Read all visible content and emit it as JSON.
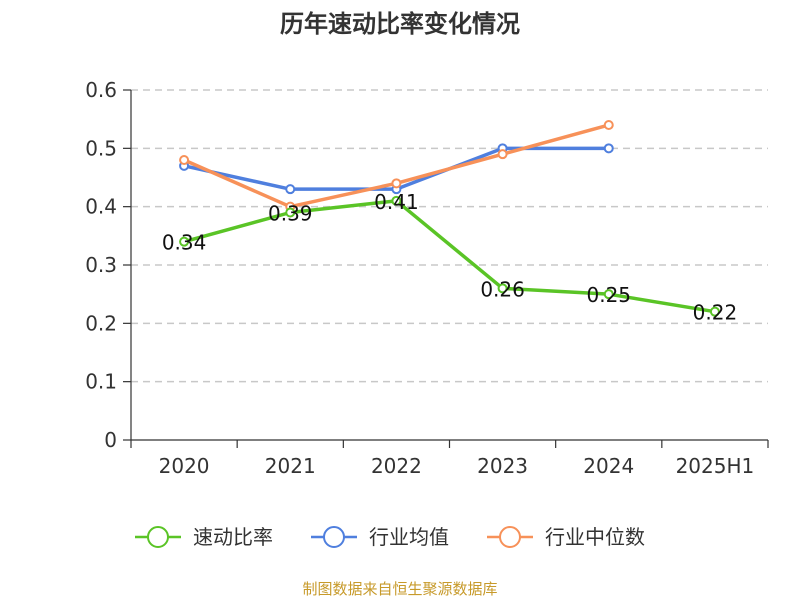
{
  "chart_data": {
    "type": "line",
    "title": "历年速动比率变化情况",
    "categories": [
      "2020",
      "2021",
      "2022",
      "2023",
      "2024",
      "2025H1"
    ],
    "ylim": [
      0,
      0.6
    ],
    "yticks": [
      0,
      0.1,
      0.2,
      0.3,
      0.4,
      0.5,
      0.6
    ],
    "ytick_labels": [
      "0",
      "0.1",
      "0.2",
      "0.3",
      "0.4",
      "0.5",
      "0.6"
    ],
    "grid": true,
    "legend_position": "bottom",
    "series": [
      {
        "name": "速动比率",
        "color": "#5ac426",
        "values": [
          0.34,
          0.39,
          0.41,
          0.26,
          0.25,
          0.22
        ],
        "labels": [
          "0.34",
          "0.39",
          "0.41",
          "0.26",
          "0.25",
          "0.22"
        ]
      },
      {
        "name": "行业均值",
        "color": "#4f7fde",
        "values": [
          0.47,
          0.43,
          0.43,
          0.5,
          0.5,
          null
        ]
      },
      {
        "name": "行业中位数",
        "color": "#f79159",
        "values": [
          0.48,
          0.4,
          0.44,
          0.49,
          0.54,
          null
        ]
      }
    ]
  },
  "source": "制图数据来自恒生聚源数据库"
}
